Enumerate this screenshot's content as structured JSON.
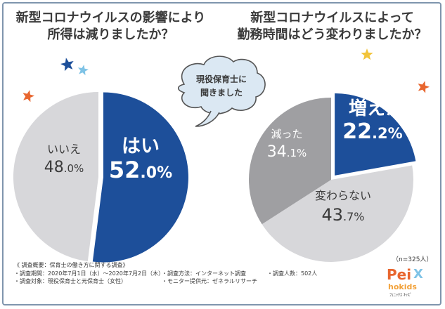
{
  "colors": {
    "blue": "#1d4f9a",
    "light_gray": "#d7d7da",
    "mid_gray": "#9f9fa2",
    "dark_text": "#3a3a3a",
    "star_navy": "#1d4f9a",
    "star_cyan": "#7fc3e6",
    "star_orange": "#e8662f",
    "star_yellow": "#f2c43a"
  },
  "chart_data": [
    {
      "type": "pie",
      "title": "新型コロナウイルスの影響により所得は減りましたか？",
      "title_lines": [
        "新型コロナウイルスの影響により",
        "所得は減りましたか？"
      ],
      "slices": [
        {
          "label": "はい",
          "value": 52.0,
          "display_int": "52",
          "display_dec": ".0",
          "color": "#1d4f9a"
        },
        {
          "label": "いいえ",
          "value": 48.0,
          "display_int": "48",
          "display_dec": ".0",
          "color": "#d7d7da"
        }
      ],
      "unit": "%"
    },
    {
      "type": "pie",
      "title": "新型コロナウイルスによって勤務時間はどう変わりましたか？",
      "title_lines": [
        "新型コロナウイルスによって",
        "勤務時間はどう変わりましたか？"
      ],
      "slices": [
        {
          "label": "増えた",
          "value": 22.2,
          "display_int": "22",
          "display_dec": ".2",
          "color": "#1d4f9a"
        },
        {
          "label": "変わらない",
          "value": 43.7,
          "display_int": "43",
          "display_dec": ".7",
          "color": "#d7d7da"
        },
        {
          "label": "減った",
          "value": 34.1,
          "display_int": "34",
          "display_dec": ".1",
          "color": "#9f9fa2"
        }
      ],
      "unit": "%"
    }
  ],
  "bubble": {
    "line1": "現役保育士に",
    "line2": "聞きました"
  },
  "sample_size": "（n=325人）",
  "footnote": {
    "heading": "《 調査概要：保育士の働き方に関する調査》",
    "period": "・調査期間：2020年7月1日（水）～2020年7月2日（木）",
    "method": "・調査方法：インターネット調査",
    "count": "・調査人数：502人",
    "target": "・調査対象：現役保育士と元保育士（女性）",
    "provider": "・モニター提供元：ゼネラルリサーチ"
  },
  "logo": {
    "text1": "Pei",
    "text2": "X",
    "text3": "hokids",
    "caption": "ﾌｪﾆｯｸｽ  ｷｯｽﾞ"
  }
}
